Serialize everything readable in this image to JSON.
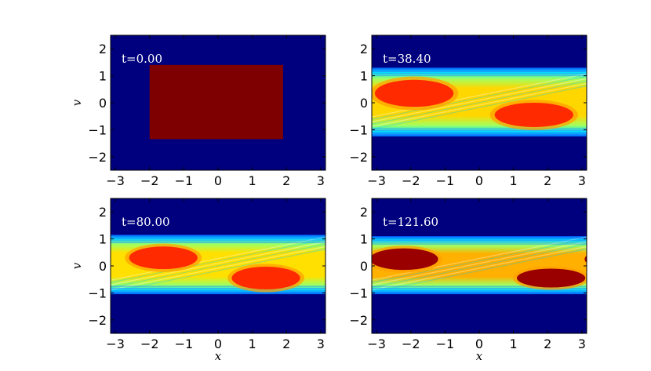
{
  "chart_data": [
    {
      "type": "heatmap",
      "title": "",
      "annotation": "t=0.00",
      "xlabel": "",
      "ylabel": "v",
      "xlim": [
        -3.14,
        3.14
      ],
      "ylim": [
        -2.5,
        2.5
      ],
      "xticks": [
        -3,
        -2,
        -1,
        0,
        1,
        2,
        3
      ],
      "yticks": [
        -2,
        -1,
        0,
        1,
        2
      ],
      "xtick_labels": [
        "−3",
        "−2",
        "−1",
        "0",
        "1",
        "2",
        "3"
      ],
      "ytick_labels": [
        "−2",
        "−1",
        "0",
        "1",
        "2"
      ],
      "colormap": "jet",
      "background_color": "#00007f",
      "structures": [
        {
          "kind": "rectangle",
          "x": [
            -2.0,
            1.9
          ],
          "v": [
            -1.35,
            1.4
          ],
          "level": 1.0,
          "color": "#7f0000"
        }
      ]
    },
    {
      "type": "heatmap",
      "title": "",
      "annotation": "t=38.40",
      "xlabel": "",
      "ylabel": "",
      "xlim": [
        -3.14,
        3.14
      ],
      "ylim": [
        -2.5,
        2.5
      ],
      "xticks": [
        -3,
        -2,
        -1,
        0,
        1,
        2,
        3
      ],
      "yticks": [
        -2,
        -1,
        0,
        1,
        2
      ],
      "xtick_labels": [
        "−3",
        "−2",
        "−1",
        "0",
        "1",
        "2",
        "3"
      ],
      "ytick_labels": [
        "−2",
        "−1",
        "0",
        "1",
        "2"
      ],
      "colormap": "jet",
      "background_color": "#00007f",
      "structures": [
        {
          "kind": "filament_band",
          "v": [
            -1.25,
            1.3
          ],
          "color": "#ffd700"
        },
        {
          "kind": "vortex",
          "cx": -1.9,
          "cv": 0.35,
          "rx": 1.15,
          "rv": 0.5,
          "color": "#ff2a00"
        },
        {
          "kind": "vortex",
          "cx": 1.6,
          "cv": -0.45,
          "rx": 1.15,
          "rv": 0.45,
          "color": "#ff2a00"
        }
      ]
    },
    {
      "type": "heatmap",
      "title": "",
      "annotation": "t=80.00",
      "xlabel": "x",
      "ylabel": "v",
      "xlim": [
        -3.14,
        3.14
      ],
      "ylim": [
        -2.5,
        2.5
      ],
      "xticks": [
        -3,
        -2,
        -1,
        0,
        1,
        2,
        3
      ],
      "yticks": [
        -2,
        -1,
        0,
        1,
        2
      ],
      "xtick_labels": [
        "−3",
        "−2",
        "−1",
        "0",
        "1",
        "2",
        "3"
      ],
      "ytick_labels": [
        "−2",
        "−1",
        "0",
        "1",
        "2"
      ],
      "colormap": "jet",
      "background_color": "#00007f",
      "structures": [
        {
          "kind": "filament_band",
          "v": [
            -1.05,
            1.15
          ],
          "color": "#ffe000"
        },
        {
          "kind": "vortex",
          "cx": -1.6,
          "cv": 0.3,
          "rx": 1.0,
          "rv": 0.42,
          "color": "#ff2a00"
        },
        {
          "kind": "vortex",
          "cx": 1.4,
          "cv": -0.45,
          "rx": 1.0,
          "rv": 0.42,
          "color": "#ff2a00"
        }
      ]
    },
    {
      "type": "heatmap",
      "title": "",
      "annotation": "t=121.60",
      "xlabel": "x",
      "ylabel": "",
      "xlim": [
        -3.14,
        3.14
      ],
      "ylim": [
        -2.5,
        2.5
      ],
      "xticks": [
        -3,
        -2,
        -1,
        0,
        1,
        2,
        3
      ],
      "yticks": [
        -2,
        -1,
        0,
        1,
        2
      ],
      "xtick_labels": [
        "−3",
        "−2",
        "−1",
        "0",
        "1",
        "2",
        "3"
      ],
      "ytick_labels": [
        "−2",
        "−1",
        "0",
        "1",
        "2"
      ],
      "colormap": "jet",
      "background_color": "#00007f",
      "structures": [
        {
          "kind": "filament_band",
          "v": [
            -1.05,
            1.1
          ],
          "color": "#ffb000"
        },
        {
          "kind": "vortex",
          "cx": -2.2,
          "cv": 0.25,
          "rx": 1.0,
          "rv": 0.4,
          "color": "#9a0000"
        },
        {
          "kind": "vortex",
          "cx": 2.1,
          "cv": -0.45,
          "rx": 1.0,
          "rv": 0.35,
          "color": "#9a0000"
        }
      ]
    }
  ]
}
